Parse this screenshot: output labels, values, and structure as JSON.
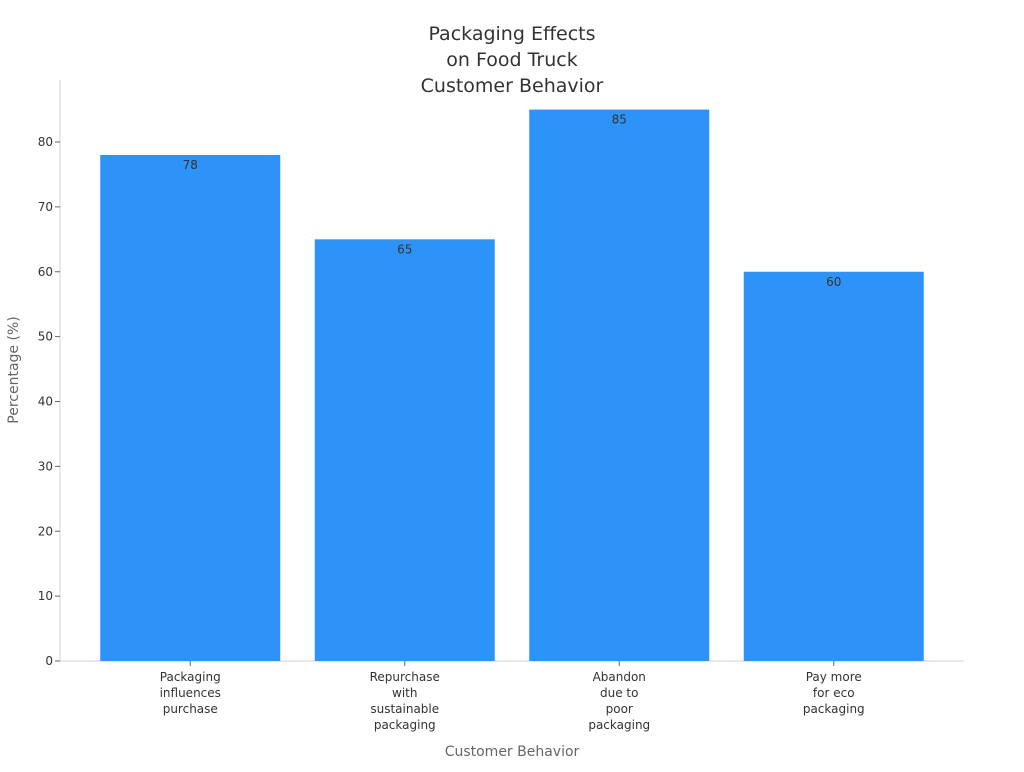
{
  "chart_data": {
    "type": "bar",
    "title_lines": [
      "Packaging Effects",
      "on Food Truck",
      "Customer Behavior"
    ],
    "xlabel": "Customer Behavior",
    "ylabel": "Percentage (%)",
    "categories": [
      [
        "Packaging",
        "influences",
        "purchase"
      ],
      [
        "Repurchase",
        "with",
        "sustainable",
        "packaging"
      ],
      [
        "Abandon",
        "due to",
        "poor",
        "packaging"
      ],
      [
        "Pay more",
        "for eco",
        "packaging"
      ]
    ],
    "values": [
      78,
      65,
      85,
      60
    ],
    "yticks": [
      0,
      10,
      20,
      30,
      40,
      50,
      60,
      70,
      80
    ],
    "ylim": [
      0,
      89
    ],
    "bar_color": "#2e93f9",
    "axis_color": "#d0d0d0",
    "grid": false,
    "legend": "none"
  }
}
